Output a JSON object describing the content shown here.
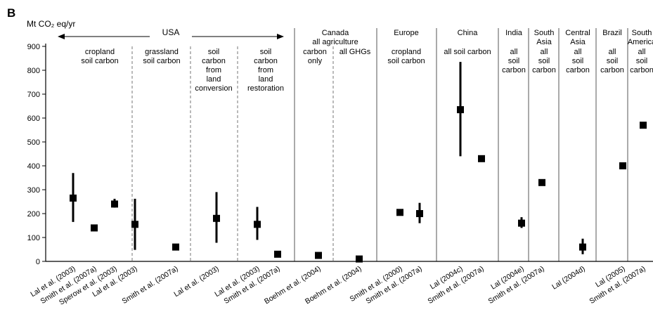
{
  "panel_letter": "B",
  "chart_data": {
    "type": "scatter",
    "ylabel": "Mt CO₂ eq/yr",
    "ylim": [
      0,
      900
    ],
    "yticks": [
      0,
      100,
      200,
      300,
      400,
      500,
      600,
      700,
      800,
      900
    ],
    "grid": false,
    "region_headers": [
      {
        "text": "USA"
      },
      {
        "text": "Canada"
      },
      {
        "text": "all agriculture"
      },
      {
        "text": "Europe"
      },
      {
        "text": "China"
      },
      {
        "text": "India"
      },
      {
        "text": "South Asia"
      },
      {
        "text": "Central Asia"
      },
      {
        "text": "Brazil"
      },
      {
        "text": "South America"
      }
    ],
    "group_labels": [
      {
        "text": "cropland soil carbon"
      },
      {
        "text": "grassland soil carbon"
      },
      {
        "text": "soil carbon from land conversion"
      },
      {
        "text": "soil carbon from land restoration"
      },
      {
        "text": "carbon only"
      },
      {
        "text": "all GHGs"
      },
      {
        "text": "cropland soil carbon"
      },
      {
        "text": "all soil carbon"
      },
      {
        "text": "all soil carbon"
      },
      {
        "text": "all soil carbon"
      },
      {
        "text": "all soil carbon"
      },
      {
        "text": "all soil carbon"
      },
      {
        "text": "all soil carbon"
      }
    ],
    "points": [
      {
        "label": "Lal et al. (2003)",
        "value": 265,
        "low": 165,
        "high": 370
      },
      {
        "label": "Smith et al. (2007a)",
        "value": 140
      },
      {
        "label": "Sperow et al. (2003)",
        "value": 240,
        "low": 225,
        "high": 262
      },
      {
        "label": "Lal et al. (2003)",
        "value": 155,
        "low": 48,
        "high": 262
      },
      {
        "label": "Smith et al. (2007a)",
        "value": 60
      },
      {
        "label": "Lal et al. (2003)",
        "value": 180,
        "low": 78,
        "high": 290
      },
      {
        "label": "Lal et al. (2003)",
        "value": 155,
        "low": 90,
        "high": 228
      },
      {
        "label": "Smith et al. (2007a)",
        "value": 30
      },
      {
        "label": "Boehm et al. (2004)",
        "value": 25
      },
      {
        "label": "Boehm et al. (2004)",
        "value": 10
      },
      {
        "label": "Smith et al. (2000)",
        "value": 205
      },
      {
        "label": "Smith et al. (2007a)",
        "value": 200,
        "low": 160,
        "high": 245
      },
      {
        "label": "Lal (2004c)",
        "value": 635,
        "low": 440,
        "high": 835
      },
      {
        "label": "Smith et al. (2007a)",
        "value": 430
      },
      {
        "label": "Lal (2004e)",
        "value": 160,
        "low": 140,
        "high": 185
      },
      {
        "label": "Smith et al. (2007a)",
        "value": 330
      },
      {
        "label": "Lal (2004d)",
        "value": 60,
        "low": 30,
        "high": 95
      },
      {
        "label": "Lal (2005)",
        "value": 400
      },
      {
        "label": "Smith et al. (2007a)",
        "value": 570
      }
    ]
  }
}
